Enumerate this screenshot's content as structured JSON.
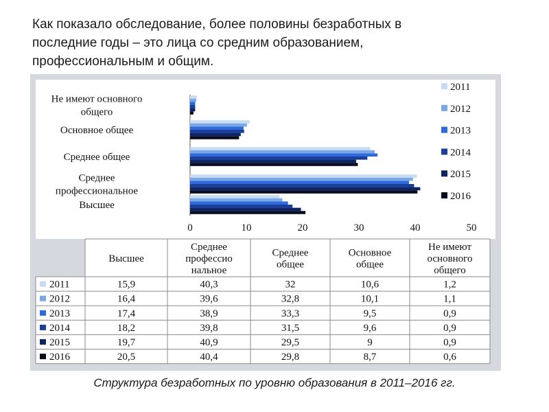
{
  "heading": {
    "lines": [
      "Как показало обследование, более половины безработных в",
      "последние годы – это лица со средним образованием,",
      "профессиональным и общим."
    ]
  },
  "caption": "Структура безработных по уровню образования в 2011–2016 гг.",
  "chart_data": {
    "type": "bar",
    "orientation": "horizontal",
    "categories": [
      {
        "lines": [
          "Высшее"
        ]
      },
      {
        "lines": [
          "Среднее",
          "профессиональное"
        ]
      },
      {
        "lines": [
          "Среднее общее"
        ]
      },
      {
        "lines": [
          "Основное общее"
        ]
      },
      {
        "lines": [
          "Не имеют основного",
          "общего"
        ]
      }
    ],
    "series": [
      {
        "name": "2011",
        "color": "#c6dcf5",
        "values": [
          15.9,
          40.3,
          32,
          10.6,
          1.2
        ]
      },
      {
        "name": "2012",
        "color": "#7aa8e6",
        "values": [
          16.4,
          39.6,
          32.8,
          10.1,
          1.1
        ]
      },
      {
        "name": "2013",
        "color": "#2f6bd8",
        "values": [
          17.4,
          38.9,
          33.3,
          9.5,
          0.9
        ]
      },
      {
        "name": "2014",
        "color": "#1a3f9a",
        "values": [
          18.2,
          39.8,
          31.5,
          9.6,
          0.9
        ]
      },
      {
        "name": "2015",
        "color": "#0e2363",
        "values": [
          19.7,
          40.9,
          29.5,
          9,
          0.9
        ]
      },
      {
        "name": "2016",
        "color": "#080c20",
        "values": [
          20.5,
          40.4,
          29.8,
          8.7,
          0.6
        ]
      }
    ],
    "xlim": [
      0,
      50
    ],
    "xticks": [
      0,
      10,
      20,
      30,
      40,
      50
    ],
    "legend_position": "right",
    "table": {
      "headers": [
        {
          "lines": [
            "Высшее"
          ]
        },
        {
          "lines": [
            "Среднее",
            "профессио",
            "нальное"
          ]
        },
        {
          "lines": [
            "Среднее",
            "общее"
          ]
        },
        {
          "lines": [
            "Основное",
            "общее"
          ]
        },
        {
          "lines": [
            "Не имеют",
            "основного",
            "общего"
          ]
        }
      ],
      "rows": [
        {
          "label": "2011",
          "values": [
            "15,9",
            "40,3",
            "32",
            "10,6",
            "1,2"
          ]
        },
        {
          "label": "2012",
          "values": [
            "16,4",
            "39,6",
            "32,8",
            "10,1",
            "1,1"
          ]
        },
        {
          "label": "2013",
          "values": [
            "17,4",
            "38,9",
            "33,3",
            "9,5",
            "0,9"
          ]
        },
        {
          "label": "2014",
          "values": [
            "18,2",
            "39,8",
            "31,5",
            "9,6",
            "0,9"
          ]
        },
        {
          "label": "2015",
          "values": [
            "19,7",
            "40,9",
            "29,5",
            "9",
            "0,9"
          ]
        },
        {
          "label": "2016",
          "values": [
            "20,5",
            "40,4",
            "29,8",
            "8,7",
            "0,6"
          ]
        }
      ]
    }
  }
}
